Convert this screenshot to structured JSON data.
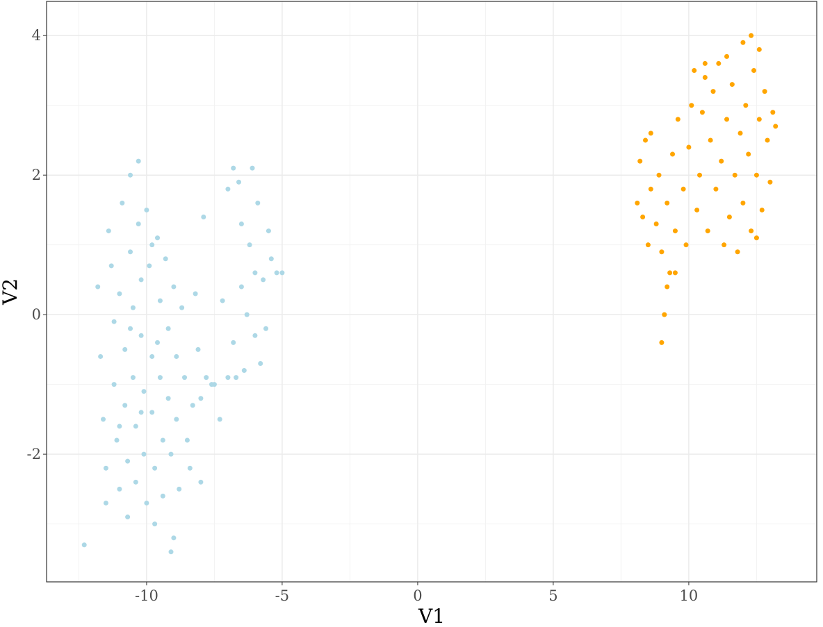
{
  "chart_data": {
    "type": "scatter",
    "x_label": "V1",
    "y_label": "V2",
    "xlim": [
      -13.69,
      14.72
    ],
    "ylim": [
      -3.83,
      4.49
    ],
    "xticks": [
      -10,
      -5,
      0,
      5,
      10
    ],
    "yticks": [
      -2,
      0,
      2,
      4
    ],
    "xminor": [
      -12.5,
      -7.5,
      -2.5,
      2.5,
      7.5,
      12.5
    ],
    "yminor": [
      -3,
      -1,
      1,
      3
    ],
    "grid": true,
    "series": [
      {
        "color": "#add8e6",
        "x": [
          -12.3,
          -11.8,
          -11.7,
          -11.6,
          -11.5,
          -11.5,
          -11.4,
          -11.3,
          -11.2,
          -11.2,
          -11.1,
          -11.0,
          -11.0,
          -10.9,
          -10.8,
          -10.8,
          -10.7,
          -10.7,
          -10.6,
          -10.6,
          -10.5,
          -10.5,
          -10.4,
          -10.4,
          -10.3,
          -10.3,
          -10.2,
          -10.2,
          -10.1,
          -10.1,
          -10.0,
          -10.0,
          -9.9,
          -9.8,
          -9.8,
          -9.7,
          -9.7,
          -9.6,
          -9.5,
          -9.5,
          -9.4,
          -9.4,
          -9.3,
          -9.2,
          -9.2,
          -9.1,
          -9.1,
          -9.0,
          -9.0,
          -8.9,
          -8.9,
          -8.8,
          -8.7,
          -8.6,
          -8.5,
          -8.4,
          -8.3,
          -8.2,
          -8.1,
          -8.0,
          -8.0,
          -9.8,
          -10.6,
          -11.0,
          -10.2,
          -9.6,
          -7.9,
          -7.8,
          -7.5,
          -7.3,
          -7.2,
          -7.0,
          -7.0,
          -6.8,
          -6.8,
          -6.6,
          -6.5,
          -6.5,
          -6.4,
          -6.3,
          -6.2,
          -6.1,
          -6.0,
          -6.0,
          -5.9,
          -5.8,
          -5.7,
          -5.6,
          -5.5,
          -5.4,
          -5.2,
          -5.0,
          -6.7,
          -7.6
        ],
        "y": [
          -3.3,
          0.4,
          -0.6,
          -1.5,
          -2.2,
          -2.7,
          1.2,
          0.7,
          -0.1,
          -1.0,
          -1.8,
          -2.5,
          0.3,
          1.6,
          -0.5,
          -1.3,
          -2.1,
          -2.9,
          2.0,
          0.9,
          0.1,
          -0.9,
          -1.6,
          -2.4,
          2.2,
          1.3,
          0.5,
          -0.3,
          -1.1,
          -2.0,
          -2.7,
          1.5,
          0.7,
          -0.6,
          -1.4,
          -2.2,
          -3.0,
          1.1,
          0.2,
          -0.9,
          -1.8,
          -2.6,
          0.8,
          -0.2,
          -1.2,
          -2.0,
          -3.4,
          -3.2,
          0.4,
          -0.6,
          -1.5,
          -2.5,
          0.1,
          -0.9,
          -1.8,
          -2.2,
          -1.3,
          0.3,
          -0.5,
          -1.2,
          -2.4,
          1.0,
          -0.2,
          -1.6,
          -1.4,
          -0.4,
          1.4,
          -0.9,
          -1.0,
          -1.5,
          0.2,
          1.8,
          -0.9,
          2.1,
          -0.4,
          1.9,
          0.4,
          1.3,
          -0.8,
          0.0,
          1.0,
          2.1,
          0.6,
          -0.3,
          1.6,
          -0.7,
          0.5,
          -0.2,
          1.2,
          0.8,
          0.6,
          0.6,
          -0.9,
          -1.0
        ]
      },
      {
        "color": "#ffa500",
        "x": [
          9.0,
          9.1,
          9.2,
          9.3,
          9.5,
          9.0,
          8.8,
          8.5,
          8.3,
          8.1,
          8.2,
          8.4,
          8.6,
          8.6,
          8.9,
          9.2,
          9.4,
          9.5,
          9.6,
          9.8,
          9.9,
          10.0,
          10.1,
          10.2,
          10.3,
          10.4,
          10.5,
          10.6,
          10.7,
          10.8,
          10.9,
          11.0,
          11.1,
          11.2,
          11.3,
          11.4,
          11.5,
          11.6,
          11.7,
          11.8,
          11.9,
          12.0,
          12.0,
          12.1,
          12.2,
          12.3,
          12.3,
          12.4,
          12.5,
          12.6,
          12.6,
          12.7,
          12.8,
          12.9,
          13.0,
          13.1,
          13.2,
          12.5,
          11.4,
          10.6
        ],
        "y": [
          -0.4,
          0.0,
          0.4,
          0.6,
          0.6,
          0.9,
          1.3,
          1.0,
          1.4,
          1.6,
          2.2,
          2.5,
          2.6,
          1.8,
          2.0,
          1.6,
          2.3,
          1.2,
          2.8,
          1.8,
          1.0,
          2.4,
          3.0,
          3.5,
          1.5,
          2.0,
          2.9,
          3.4,
          1.2,
          2.5,
          3.2,
          1.8,
          3.6,
          2.2,
          1.0,
          2.8,
          1.4,
          3.3,
          2.0,
          0.9,
          2.6,
          3.9,
          1.6,
          3.0,
          2.3,
          4.0,
          1.2,
          3.5,
          2.0,
          2.8,
          3.8,
          1.5,
          3.2,
          2.5,
          1.9,
          2.9,
          2.7,
          1.1,
          3.7,
          3.6
        ]
      }
    ]
  }
}
